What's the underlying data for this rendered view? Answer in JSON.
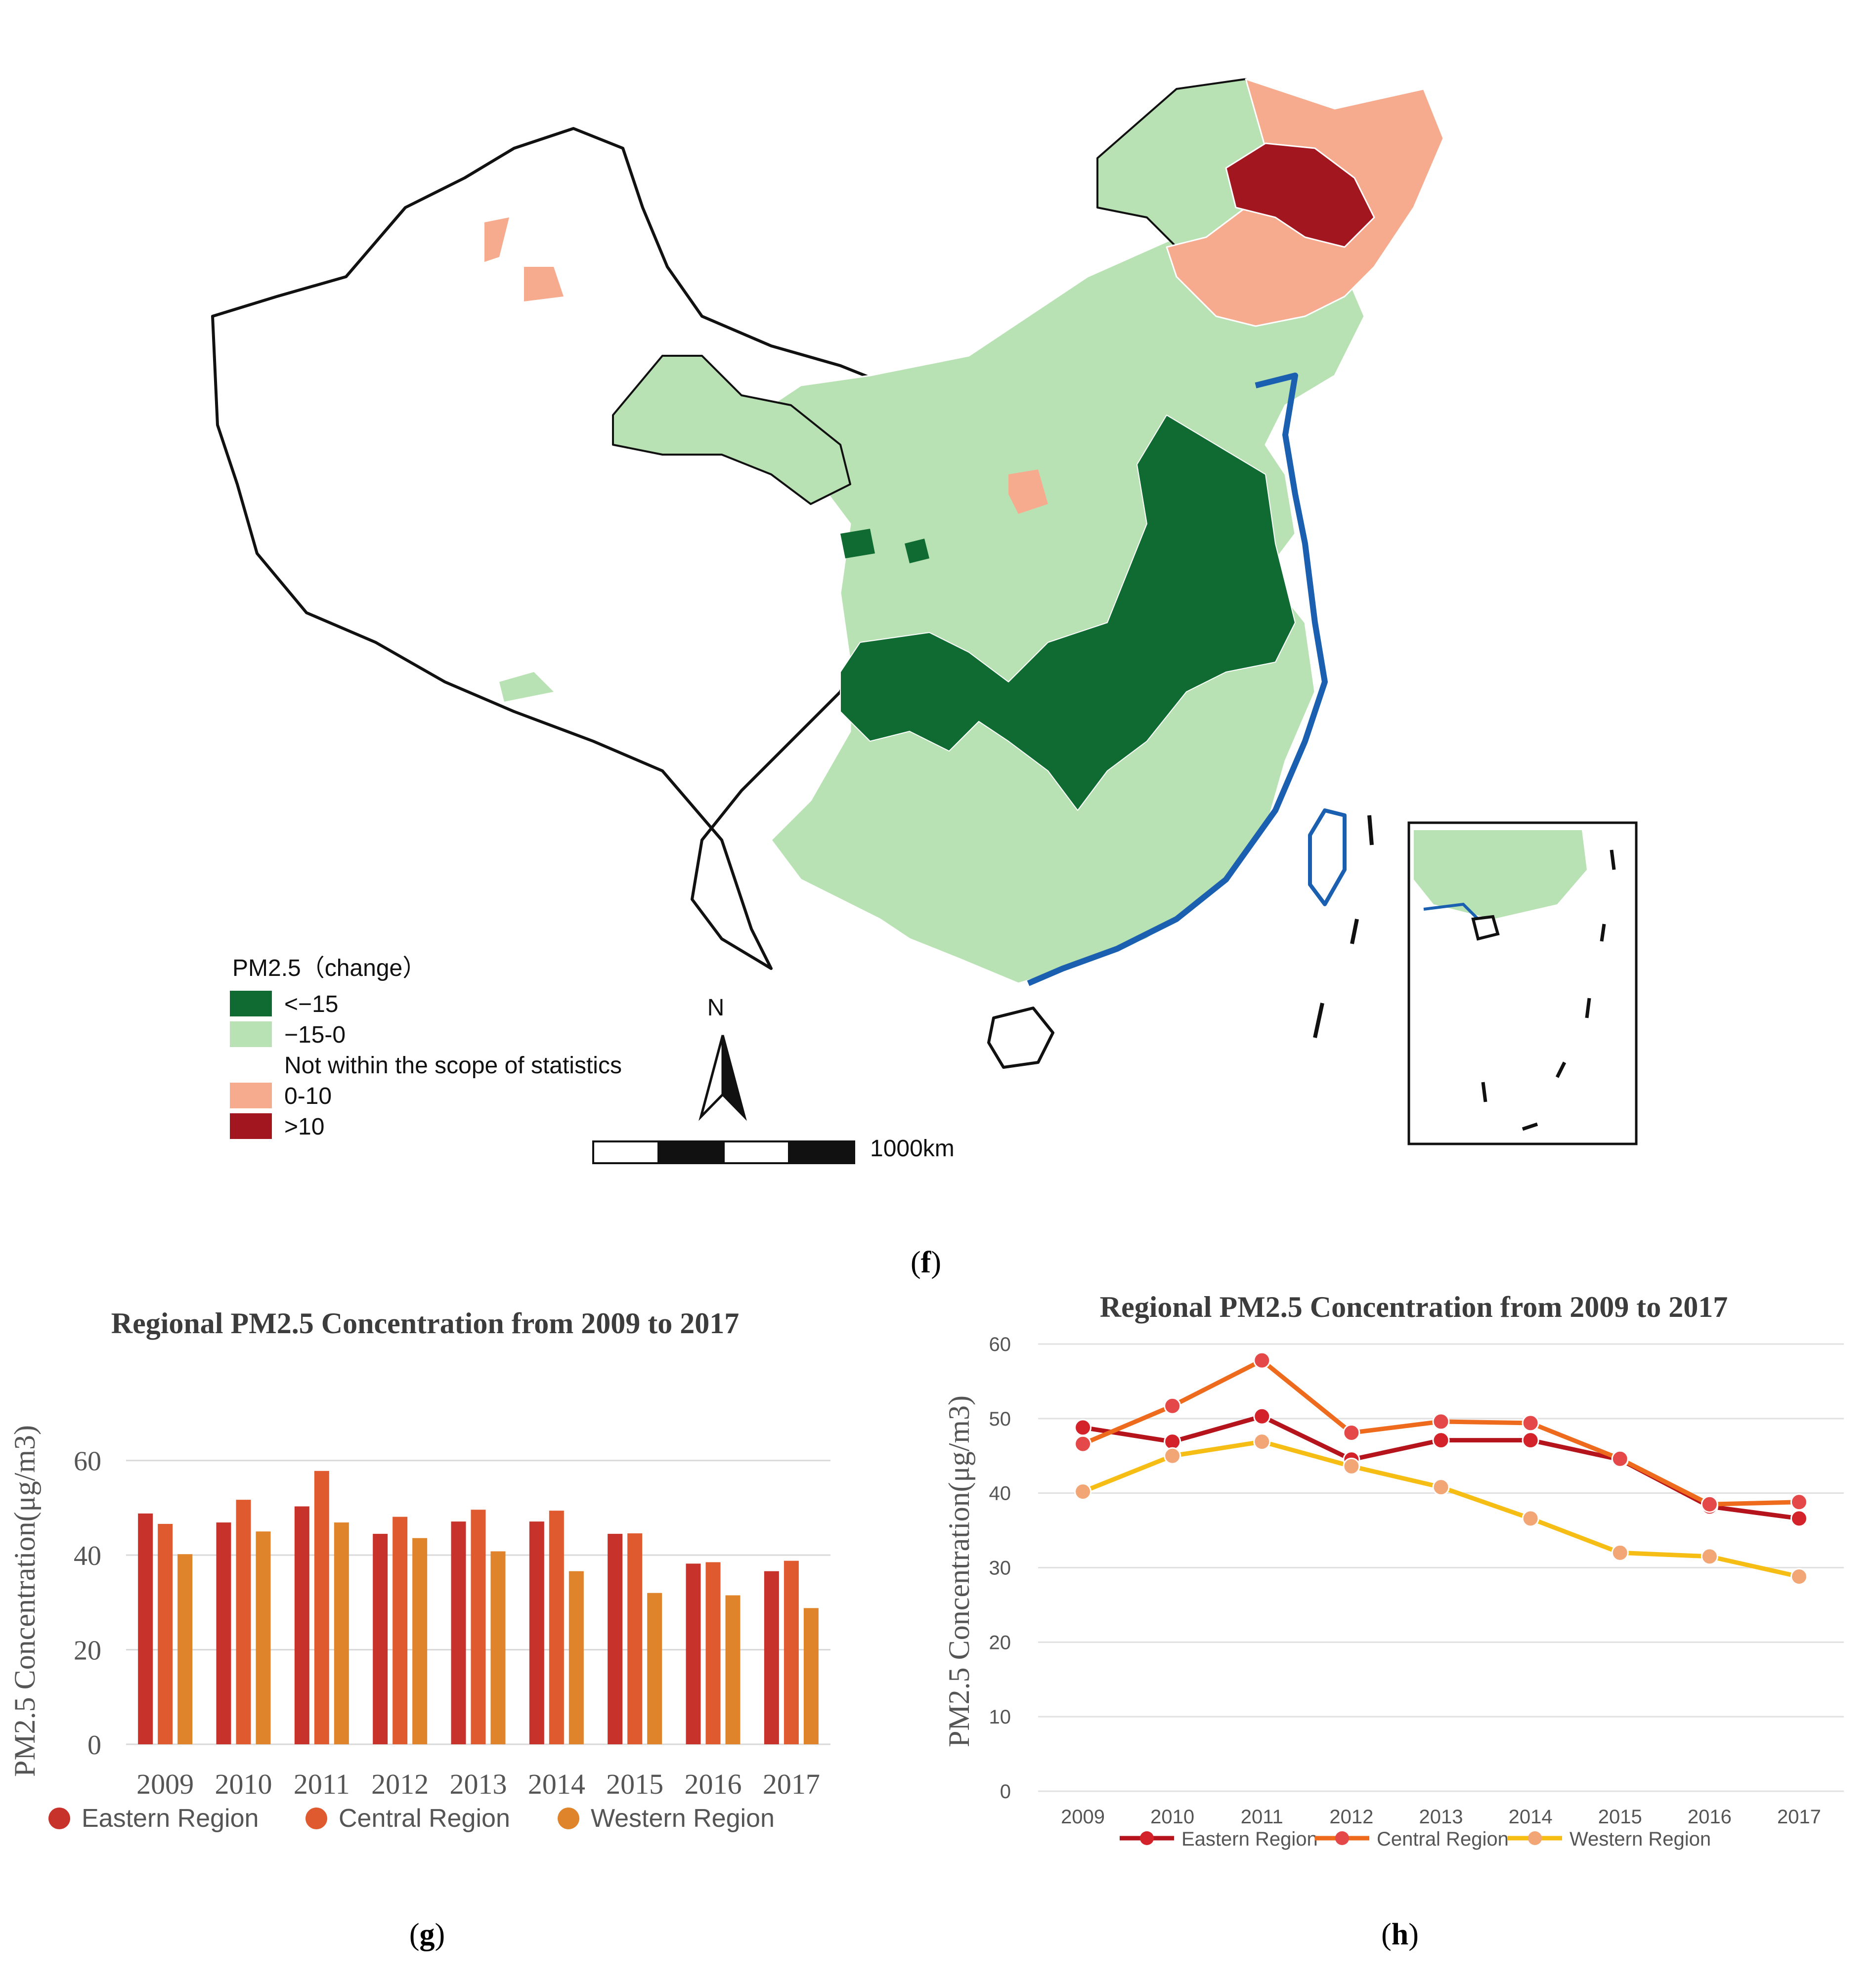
{
  "figure_f": {
    "caption_label": "f",
    "legend": {
      "title": "PM2.5（change）",
      "items": [
        {
          "label": "<−15",
          "color": "#0f6b32"
        },
        {
          "label": "−15-0",
          "color": "#b9e2b4"
        },
        {
          "label": "Not within the scope of statistics",
          "color": "#ffffff"
        },
        {
          "label": "0-10",
          "color": "#f6ab8f"
        },
        {
          "label": ">10",
          "color": "#a1161f"
        }
      ]
    },
    "north_label": "N",
    "scale_label": "1000km",
    "colors": {
      "border": "#111111",
      "coast": "#1b5fb0"
    }
  },
  "figure_g": {
    "caption_label": "g"
  },
  "figure_h": {
    "caption_label": "h"
  },
  "chart_data": [
    {
      "id": "g",
      "type": "bar",
      "title": "Regional PM2.5 Concentration from 2009 to 2017",
      "ylabel": "PM2.5 Concentration(μg/m3)",
      "xlabel": "",
      "categories": [
        "2009",
        "2010",
        "2011",
        "2012",
        "2013",
        "2014",
        "2015",
        "2016",
        "2017"
      ],
      "ylim": [
        0,
        70
      ],
      "yticks": [
        0,
        20,
        40,
        60
      ],
      "grid": true,
      "legend_position": "bottom",
      "series": [
        {
          "name": "Eastern Region",
          "color": "#c7332a",
          "values": [
            48.8,
            46.9,
            50.3,
            44.5,
            47.1,
            47.1,
            44.5,
            38.2,
            36.6
          ]
        },
        {
          "name": "Central Region",
          "color": "#df5a2f",
          "values": [
            46.6,
            51.7,
            57.8,
            48.1,
            49.6,
            49.4,
            44.6,
            38.5,
            38.8
          ]
        },
        {
          "name": "Western Region",
          "color": "#e0842c",
          "values": [
            40.2,
            45.0,
            46.9,
            43.6,
            40.8,
            36.6,
            32.0,
            31.5,
            28.8
          ]
        }
      ]
    },
    {
      "id": "h",
      "type": "line",
      "title": "Regional PM2.5 Concentration from 2009 to 2017",
      "ylabel": "PM2.5 Concentration(μg/m3)",
      "xlabel": "",
      "x": [
        "2009",
        "2010",
        "2011",
        "2012",
        "2013",
        "2014",
        "2015",
        "2016",
        "2017"
      ],
      "ylim": [
        0,
        60
      ],
      "yticks": [
        0,
        10,
        20,
        30,
        40,
        50,
        60
      ],
      "grid": true,
      "legend_position": "bottom",
      "series": [
        {
          "name": "Eastern Region",
          "line_color": "#b5141c",
          "marker_color": "#d3222a",
          "values": [
            48.8,
            46.9,
            50.3,
            44.5,
            47.1,
            47.1,
            44.5,
            38.2,
            36.6
          ]
        },
        {
          "name": "Central Region",
          "line_color": "#ee6b1e",
          "marker_color": "#e44848",
          "values": [
            46.6,
            51.7,
            57.8,
            48.1,
            49.6,
            49.4,
            44.6,
            38.5,
            38.8
          ]
        },
        {
          "name": "Western Region",
          "line_color": "#f6bd14",
          "marker_color": "#f2a675",
          "values": [
            40.2,
            45.0,
            46.9,
            43.6,
            40.8,
            36.6,
            32.0,
            31.5,
            28.8
          ]
        }
      ]
    }
  ]
}
